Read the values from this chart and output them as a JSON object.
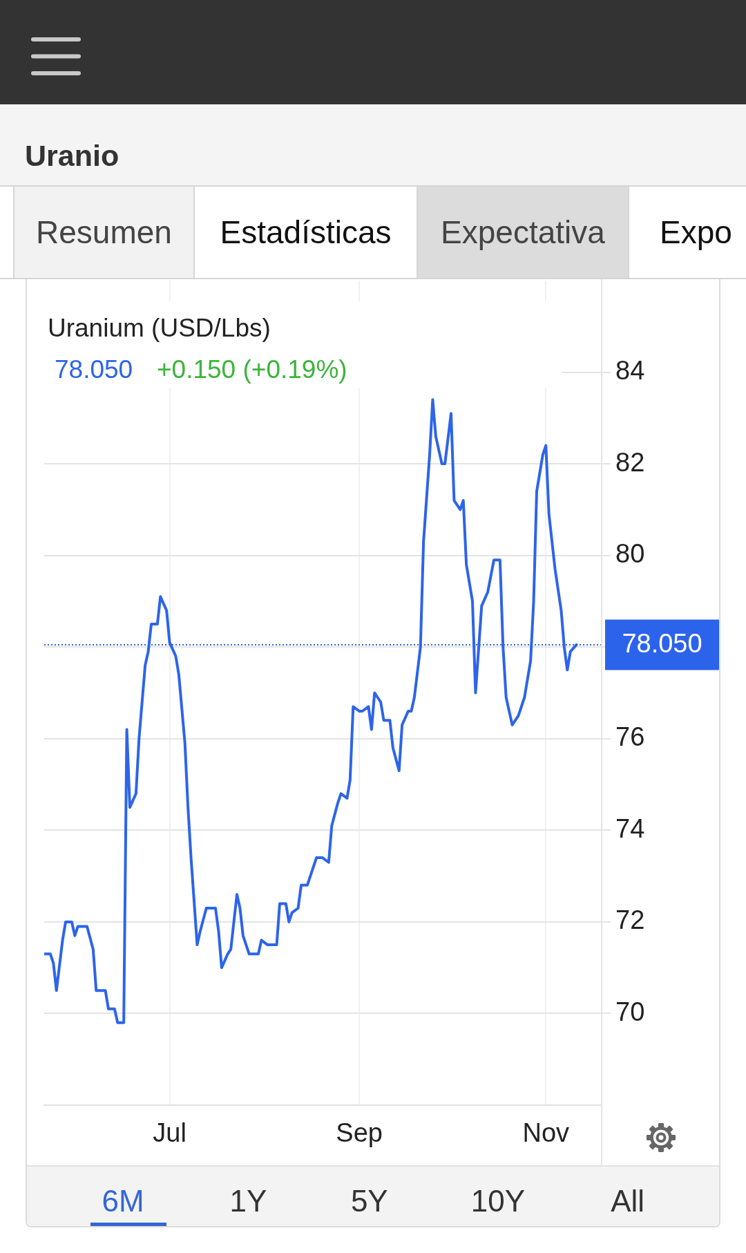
{
  "chart_data": {
    "type": "line",
    "title": "Uranio",
    "subtitle": "Uranium (USD/Lbs)",
    "annotations": [
      "Resumen",
      "Estadísticas",
      "Expectativa",
      "Expo",
      "78.050",
      "+0.150 (+0.19%)",
      "6M",
      "1Y",
      "5Y",
      "10Y",
      "All"
    ],
    "x": [
      "--05-21",
      "--05-23",
      "--05-24",
      "--05-25",
      "--05-27",
      "--05-28",
      "--05-30",
      "--05-31",
      "--06-01",
      "--06-03",
      "--06-04",
      "--06-06",
      "--06-07",
      "--06-10",
      "--06-11",
      "--06-13",
      "--06-14",
      "--06-16",
      "--06-17",
      "--06-18",
      "--06-20",
      "--06-21",
      "--06-23",
      "--06-24",
      "--06-25",
      "--06-27",
      "--06-28",
      "--06-30",
      "--07-01",
      "--07-03",
      "--07-04",
      "--07-06",
      "--07-07",
      "--07-08",
      "--07-10",
      "--07-11",
      "--07-13",
      "--07-16",
      "--07-17",
      "--07-18",
      "--07-20",
      "--07-21",
      "--07-23",
      "--07-24",
      "--07-25",
      "--07-27",
      "--07-29",
      "--07-30",
      "--07-31",
      "--08-02",
      "--08-05",
      "--08-06",
      "--08-08",
      "--08-09",
      "--08-10",
      "--08-12",
      "--08-13",
      "--08-15",
      "--08-16",
      "--08-18",
      "--08-20",
      "--08-22",
      "--08-23",
      "--08-25",
      "--08-26",
      "--08-28",
      "--08-29",
      "--08-30",
      "--09-01",
      "--09-02",
      "--09-04",
      "--09-05",
      "--09-06",
      "--09-08",
      "--09-09",
      "--09-11",
      "--09-12",
      "--09-14",
      "--09-15",
      "--09-17",
      "--09-18",
      "--09-19",
      "--09-21",
      "--09-22",
      "--09-24",
      "--09-25",
      "--09-26",
      "--09-28",
      "--09-29",
      "--10-01",
      "--10-02",
      "--10-04",
      "--10-05",
      "--10-06",
      "--10-08",
      "--10-09",
      "--10-11",
      "--10-13",
      "--10-15",
      "--10-17",
      "--10-18",
      "--10-19",
      "--10-21",
      "--10-23",
      "--10-25",
      "--10-27",
      "--10-28",
      "--10-29",
      "--10-31",
      "--11-01",
      "--11-02",
      "--11-04",
      "--11-06",
      "--11-07",
      "--11-08",
      "--11-09",
      "--11-11"
    ],
    "values": [
      71.3,
      71.3,
      71.1,
      70.5,
      71.6,
      72.0,
      72.0,
      71.7,
      71.9,
      71.9,
      71.9,
      71.4,
      70.5,
      70.5,
      70.1,
      70.1,
      69.8,
      69.8,
      76.2,
      74.5,
      74.8,
      76.0,
      77.6,
      77.9,
      78.5,
      78.5,
      79.1,
      78.8,
      78.1,
      77.8,
      77.4,
      75.9,
      74.5,
      73.4,
      71.5,
      71.8,
      72.3,
      72.3,
      71.8,
      71.0,
      71.3,
      71.4,
      72.6,
      72.3,
      71.7,
      71.3,
      71.3,
      71.3,
      71.6,
      71.5,
      71.5,
      72.4,
      72.4,
      72.0,
      72.2,
      72.3,
      72.8,
      72.8,
      73.0,
      73.4,
      73.4,
      73.3,
      74.1,
      74.6,
      74.8,
      74.7,
      75.1,
      76.7,
      76.6,
      76.6,
      76.7,
      76.2,
      77.0,
      76.8,
      76.4,
      76.4,
      75.8,
      75.3,
      76.3,
      76.6,
      76.6,
      76.9,
      78.0,
      80.3,
      82.2,
      83.4,
      82.6,
      82.0,
      82.0,
      83.1,
      81.2,
      81.0,
      81.2,
      79.8,
      79.0,
      77.0,
      78.9,
      79.2,
      79.9,
      79.9,
      78.0,
      76.9,
      76.3,
      76.5,
      76.9,
      77.7,
      79.0,
      81.4,
      82.2,
      82.4,
      80.9,
      79.7,
      78.8,
      78.0,
      77.5,
      77.9,
      78.05
    ],
    "color": "#2d64ea",
    "marker": "none",
    "grid": true,
    "xlim": [
      "--05-21",
      "--11-19"
    ],
    "xticks": [
      {
        "value": "--07-01",
        "label": "Jul"
      },
      {
        "value": "--09-01",
        "label": "Sep"
      },
      {
        "value": "--11-01",
        "label": "Nov"
      }
    ],
    "ylim": [
      68,
      86
    ],
    "yticks": [
      70,
      72,
      74,
      76,
      {
        "value": 78,
        "label": null
      },
      80,
      82,
      84
    ],
    "ref_lines": [
      {
        "axis": "y",
        "value": 78.05,
        "label": "78.050",
        "color": "#2c63eb",
        "line_style": "dotted"
      }
    ]
  }
}
